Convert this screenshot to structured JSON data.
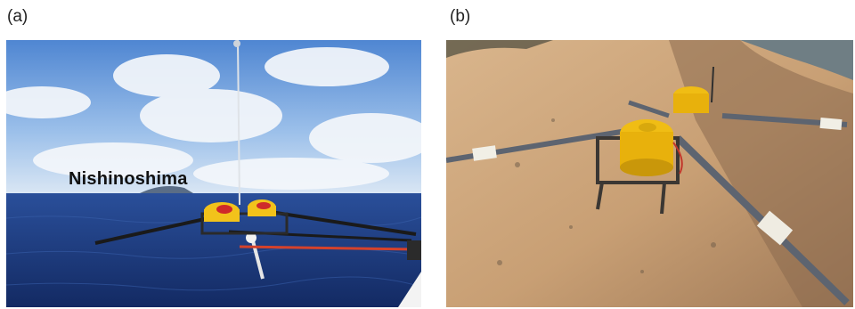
{
  "panels": [
    {
      "label": "(a)",
      "photo": "ocean-obs-deployment",
      "overlay_text": "Nishinoshima"
    },
    {
      "label": "(b)",
      "photo": "ocean-obs-on-beach"
    }
  ],
  "colors": {
    "sky_top": "#5b8fd6",
    "sea": "#1f3f86",
    "instrument_yellow": "#f2c21b",
    "sand": "#cda47a"
  }
}
